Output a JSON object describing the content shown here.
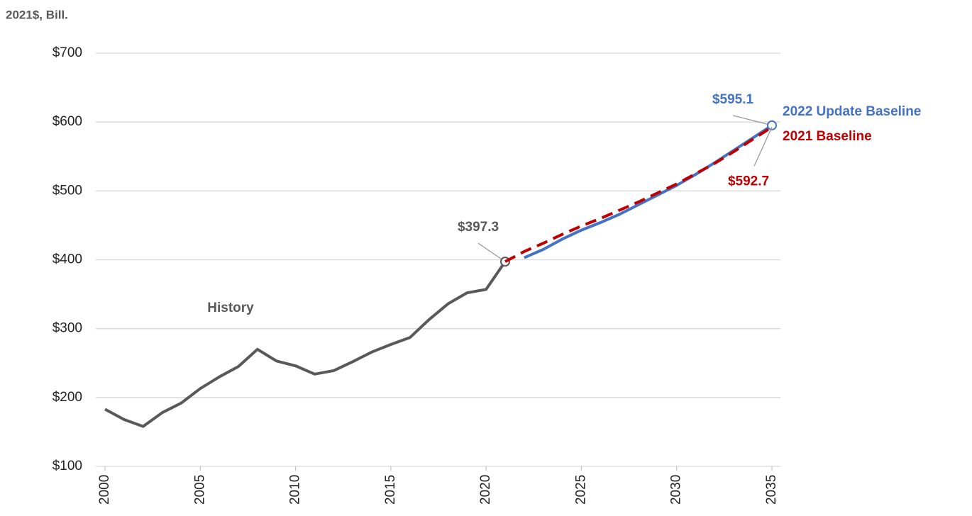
{
  "chart_data": {
    "type": "line",
    "y_label": "2021$, Bill.",
    "x": [
      2000,
      2001,
      2002,
      2003,
      2004,
      2005,
      2006,
      2007,
      2008,
      2009,
      2010,
      2011,
      2012,
      2013,
      2014,
      2015,
      2016,
      2017,
      2018,
      2019,
      2020,
      2021,
      2022,
      2023,
      2024,
      2025,
      2026,
      2027,
      2028,
      2029,
      2030,
      2031,
      2032,
      2033,
      2034,
      2035
    ],
    "xlim": [
      2000,
      2035
    ],
    "xticks": [
      2000,
      2005,
      2010,
      2015,
      2020,
      2025,
      2030,
      2035
    ],
    "ylim": [
      100,
      700
    ],
    "yticks": [
      {
        "value": 100,
        "label": "$100"
      },
      {
        "value": 200,
        "label": "$200"
      },
      {
        "value": 300,
        "label": "$300"
      },
      {
        "value": 400,
        "label": "$400"
      },
      {
        "value": 500,
        "label": "$500"
      },
      {
        "value": 600,
        "label": "$600"
      },
      {
        "value": 700,
        "label": "$700"
      }
    ],
    "grid": true,
    "series": [
      {
        "name": "History",
        "color": "#595959",
        "style": "solid",
        "values": [
          183,
          168,
          158,
          178,
          192,
          213,
          230,
          245,
          270,
          253,
          246,
          234,
          239,
          252,
          266,
          277,
          287,
          313,
          336,
          352,
          357,
          397.3,
          null,
          null,
          null,
          null,
          null,
          null,
          null,
          null,
          null,
          null,
          null,
          null,
          null,
          null
        ],
        "value_labels": [
          null,
          null,
          null,
          null,
          null,
          null,
          null,
          null,
          null,
          null,
          null,
          null,
          null,
          null,
          null,
          null,
          null,
          null,
          null,
          null,
          null,
          "$397.3",
          null,
          null,
          null,
          null,
          null,
          null,
          null,
          null,
          null,
          null,
          null,
          null,
          null,
          null
        ]
      },
      {
        "name": "2022 Update Baseline",
        "color": "#4472c4",
        "style": "solid",
        "values": [
          null,
          null,
          null,
          null,
          null,
          null,
          null,
          null,
          null,
          null,
          null,
          null,
          null,
          null,
          null,
          null,
          null,
          null,
          null,
          null,
          null,
          null,
          403,
          415,
          430,
          443,
          454,
          466,
          480,
          494,
          508,
          524,
          541,
          559,
          577,
          595.1
        ],
        "value_labels": [
          null,
          null,
          null,
          null,
          null,
          null,
          null,
          null,
          null,
          null,
          null,
          null,
          null,
          null,
          null,
          null,
          null,
          null,
          null,
          null,
          null,
          null,
          null,
          null,
          null,
          null,
          null,
          null,
          null,
          null,
          null,
          null,
          null,
          null,
          null,
          "$595.1"
        ]
      },
      {
        "name": "2021 Baseline",
        "color": "#c00000",
        "style": "dashed",
        "values": [
          null,
          null,
          null,
          null,
          null,
          null,
          null,
          null,
          null,
          null,
          null,
          null,
          null,
          null,
          null,
          null,
          null,
          null,
          null,
          null,
          null,
          397.3,
          412,
          424,
          437,
          449,
          460,
          472,
          484,
          497,
          510,
          525,
          540,
          557,
          575,
          592.7
        ],
        "value_labels": [
          null,
          null,
          null,
          null,
          null,
          null,
          null,
          null,
          null,
          null,
          null,
          null,
          null,
          null,
          null,
          null,
          null,
          null,
          null,
          null,
          null,
          null,
          null,
          null,
          null,
          null,
          null,
          null,
          null,
          null,
          null,
          null,
          null,
          null,
          null,
          "$592.7"
        ]
      }
    ]
  }
}
